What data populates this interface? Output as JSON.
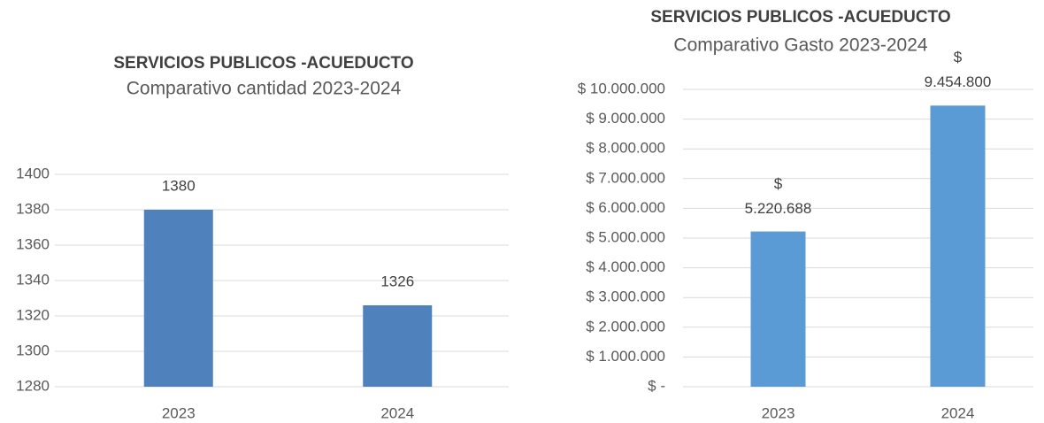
{
  "chart_data": [
    {
      "type": "bar",
      "title": "SERVICIOS PUBLICOS -ACUEDUCTO",
      "subtitle": "Comparativo cantidad 2023-2024",
      "categories": [
        "2023",
        "2024"
      ],
      "values": [
        1380,
        1326
      ],
      "color": "#4f81bd",
      "ylim": [
        1280,
        1400
      ],
      "yticks": [
        1280,
        1300,
        1320,
        1340,
        1360,
        1380,
        1400
      ],
      "grid": true
    },
    {
      "type": "bar",
      "title": "SERVICIOS PUBLICOS -ACUEDUCTO",
      "subtitle": "Comparativo Gasto 2023-2024",
      "categories": [
        "2023",
        "2024"
      ],
      "values": [
        5220688,
        9454800
      ],
      "value_labels": [
        "$\n5.220.688",
        "$\n9.454.800"
      ],
      "color": "#5b9bd5",
      "ylim": [
        0,
        10000000
      ],
      "yticks": [
        {
          "value": 0,
          "label": "$ -"
        },
        {
          "value": 1000000,
          "label": "$ 1.000.000"
        },
        {
          "value": 2000000,
          "label": "$ 2.000.000"
        },
        {
          "value": 3000000,
          "label": "$ 3.000.000"
        },
        {
          "value": 4000000,
          "label": "$ 4.000.000"
        },
        {
          "value": 5000000,
          "label": "$ 5.000.000"
        },
        {
          "value": 6000000,
          "label": "$ 6.000.000"
        },
        {
          "value": 7000000,
          "label": "$ 7.000.000"
        },
        {
          "value": 8000000,
          "label": "$ 8.000.000"
        },
        {
          "value": 9000000,
          "label": "$ 9.000.000"
        },
        {
          "value": 10000000,
          "label": "$ 10.000.000"
        }
      ],
      "grid": true
    }
  ]
}
